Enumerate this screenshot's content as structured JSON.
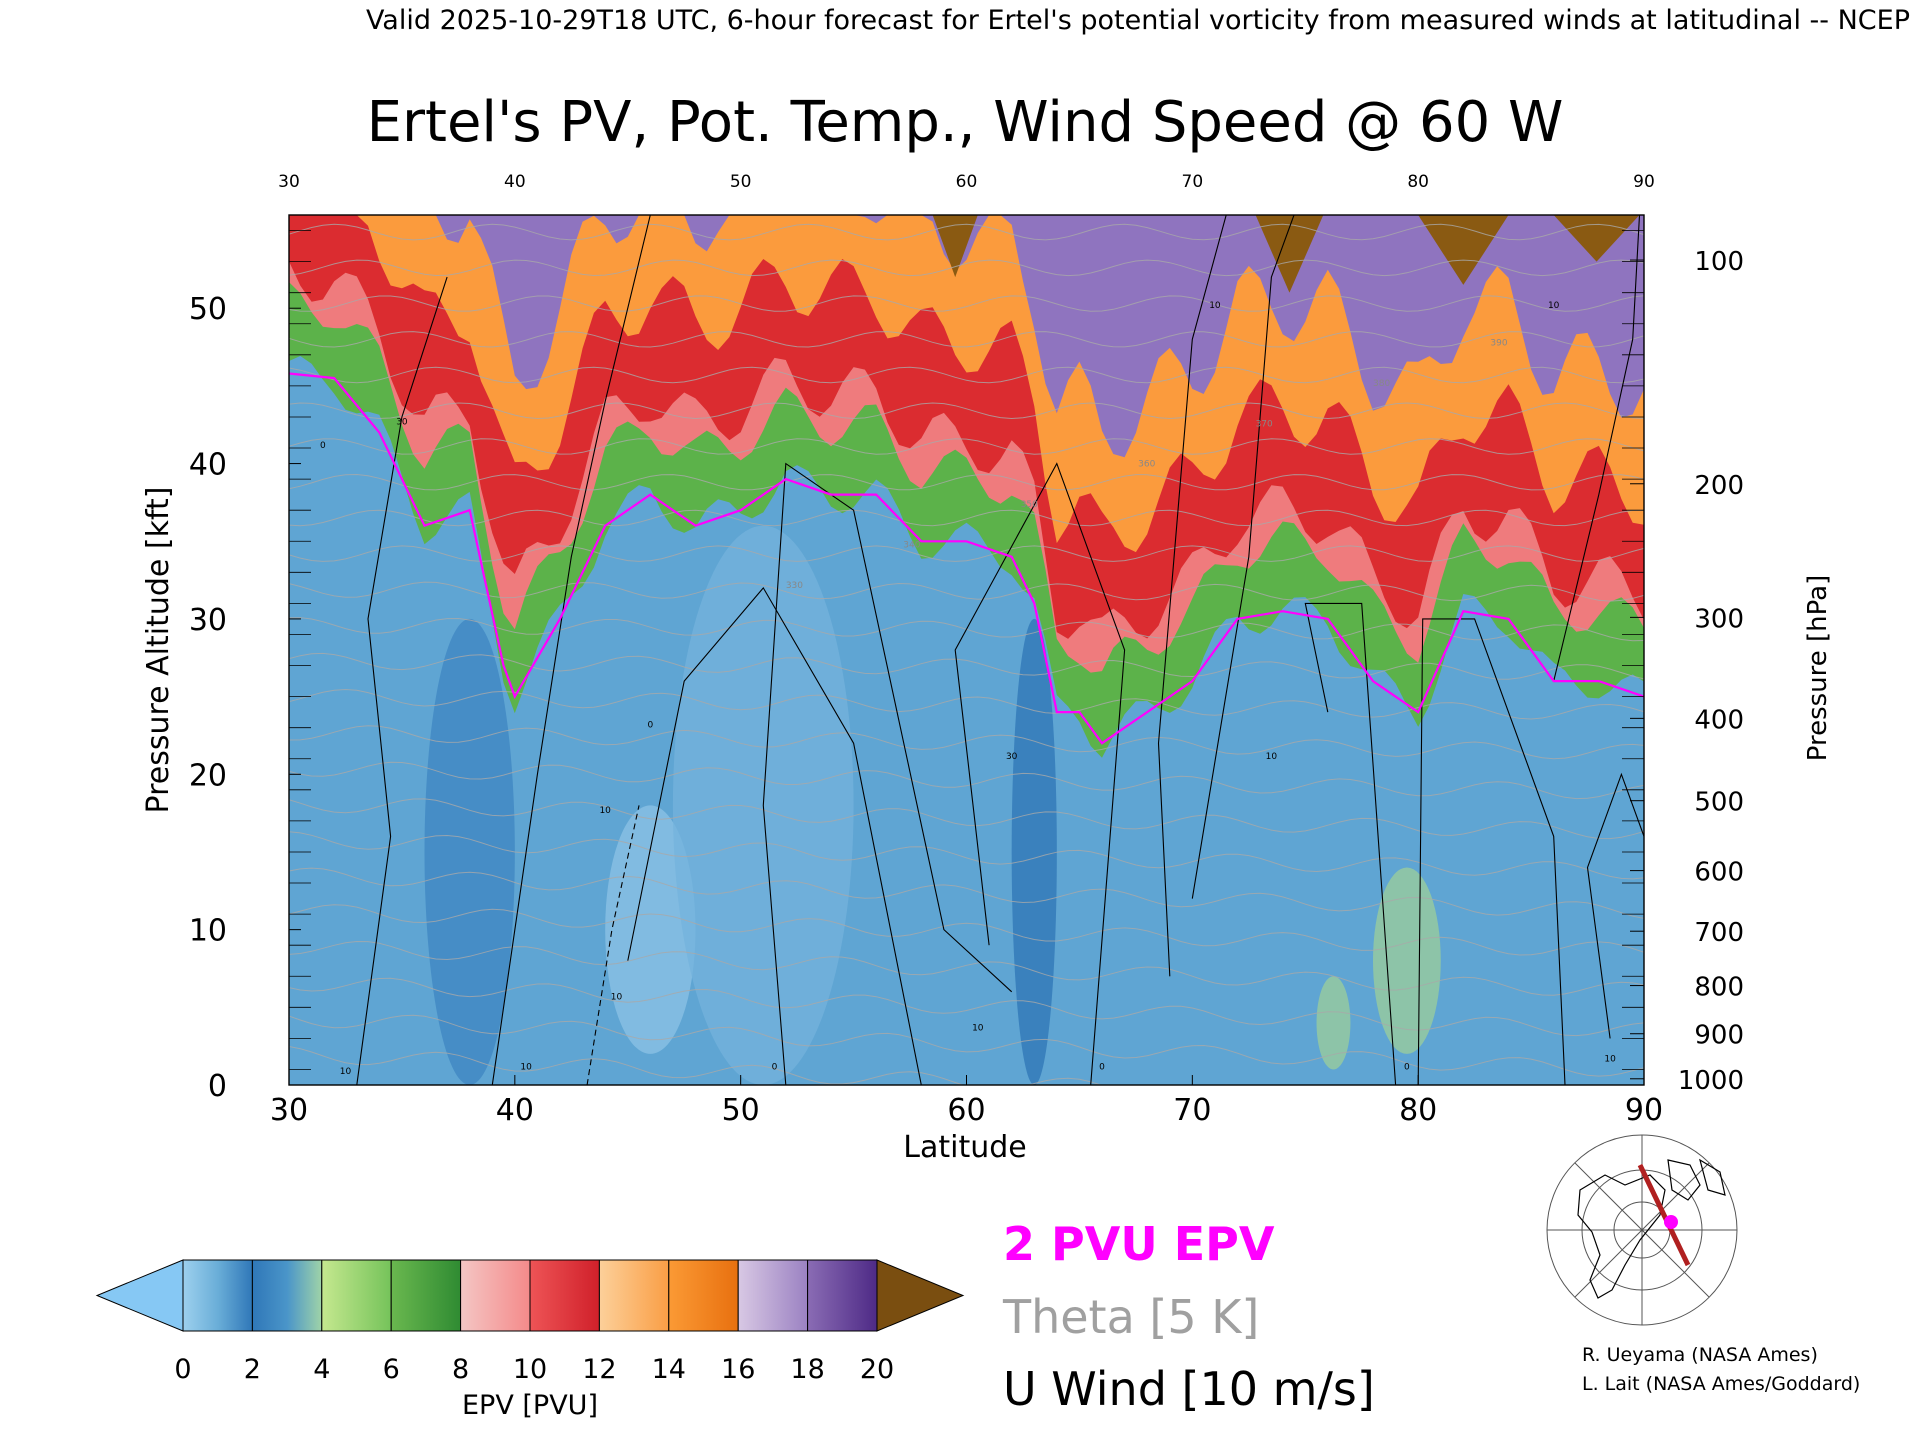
{
  "header": "Valid 2025-10-29T18 UTC, 6-hour forecast for Ertel's potential vorticity from measured winds at latitudinal -- NCEP",
  "chart_data": {
    "type": "heatmap",
    "title": "Ertel's PV, Pot. Temp., Wind Speed @ 60 W",
    "xlabel": "Latitude",
    "ylabel": "Pressure Altitude [kft]",
    "y2label": "Pressure [hPa]",
    "xlim": [
      30,
      90
    ],
    "ylim": [
      0,
      56
    ],
    "x_ticks": [
      "30",
      "40",
      "50",
      "60",
      "70",
      "80",
      "90"
    ],
    "y_ticks": [
      "0",
      "10",
      "20",
      "30",
      "40",
      "50"
    ],
    "pressure_ticks": [
      {
        "label": "100",
        "kft": 53.1
      },
      {
        "label": "200",
        "kft": 38.7
      },
      {
        "label": "300",
        "kft": 30.1
      },
      {
        "label": "400",
        "kft": 23.6
      },
      {
        "label": "500",
        "kft": 18.3
      },
      {
        "label": "600",
        "kft": 13.8
      },
      {
        "label": "700",
        "kft": 9.9
      },
      {
        "label": "800",
        "kft": 6.4
      },
      {
        "label": "900",
        "kft": 3.3
      },
      {
        "label": "1000",
        "kft": 0.4
      }
    ],
    "tropopause_2pvu_kft": [
      [
        30,
        45.8
      ],
      [
        32,
        45.5
      ],
      [
        34,
        42
      ],
      [
        36,
        36
      ],
      [
        38,
        37
      ],
      [
        39.5,
        27
      ],
      [
        40,
        25
      ],
      [
        42,
        30
      ],
      [
        44,
        36
      ],
      [
        46,
        38
      ],
      [
        48,
        36
      ],
      [
        50,
        37
      ],
      [
        52,
        39
      ],
      [
        54,
        38
      ],
      [
        56,
        38
      ],
      [
        58,
        35
      ],
      [
        60,
        35
      ],
      [
        62,
        34
      ],
      [
        63,
        31
      ],
      [
        64,
        24
      ],
      [
        65,
        24
      ],
      [
        66,
        22
      ],
      [
        68,
        24
      ],
      [
        70,
        26
      ],
      [
        72,
        30
      ],
      [
        74,
        30.5
      ],
      [
        76,
        30
      ],
      [
        78,
        26
      ],
      [
        80,
        24
      ],
      [
        82,
        30.5
      ],
      [
        84,
        30
      ],
      [
        86,
        26
      ],
      [
        88,
        26
      ],
      [
        90,
        25
      ]
    ],
    "u_wind_contour_labels": [
      "0",
      "10",
      "30"
    ],
    "theta_labels": [
      "330",
      "340",
      "350",
      "360",
      "370",
      "380",
      "390"
    ],
    "colorbar": {
      "label": "EPV [PVU]",
      "ticks": [
        "0",
        "2",
        "4",
        "6",
        "8",
        "10",
        "12",
        "14",
        "16",
        "18",
        "20"
      ],
      "colors": [
        "#78b6d8",
        "#2f77b8",
        "#b4de82",
        "#3b9a3c",
        "#f7a6a5",
        "#d9292a",
        "#fbb165",
        "#f57f19",
        "#b9a0d0",
        "#6a3d9a",
        "#f1ea8e",
        "#8b5a16"
      ],
      "under_color": "#86c8f4",
      "over_color": "#7a4e10"
    }
  },
  "legend": {
    "epv": "2 PVU EPV",
    "theta": "Theta [5 K]",
    "u_wind": "U Wind [10 m/s]",
    "epv_color": "#ff00ff",
    "theta_color": "#a0a0a0"
  },
  "inset_map_icon": "polar-stereographic-map-with-section-line",
  "credits": [
    "R. Ueyama (NASA Ames)",
    "L. Lait (NASA Ames/Goddard)"
  ]
}
